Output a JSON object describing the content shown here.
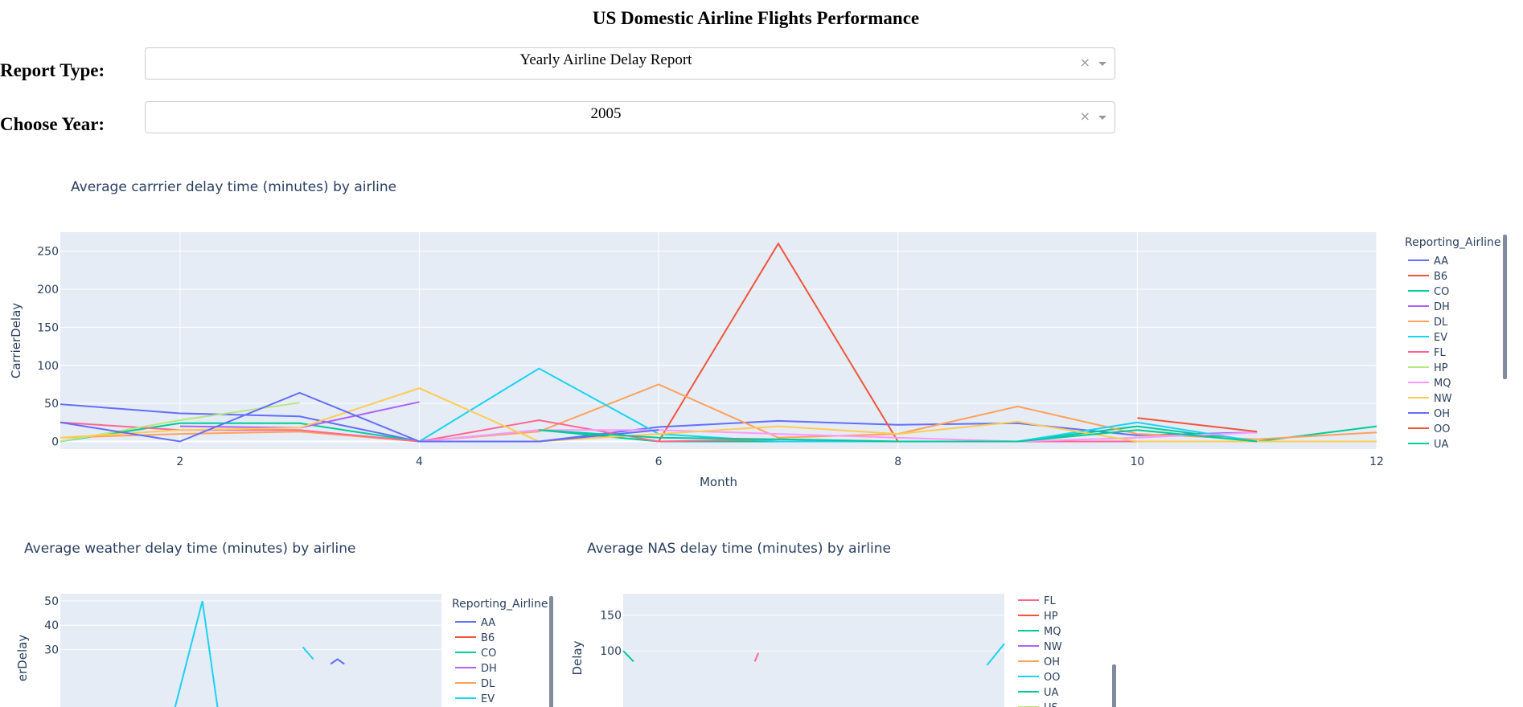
{
  "page": {
    "title": "US Domestic Airline Flights Performance"
  },
  "controls": {
    "report_type": {
      "label": "Report Type:",
      "value": "Yearly Airline Delay Report",
      "clear_glyph": "×"
    },
    "year": {
      "label": "Choose Year:",
      "value": "2005",
      "clear_glyph": "×"
    }
  },
  "chart_data": [
    {
      "type": "line",
      "title": "Average carrrier delay time (minutes) by airline",
      "xlabel": "Month",
      "ylabel": "CarrierDelay",
      "xlim": [
        1,
        12
      ],
      "ylim": [
        -10,
        275
      ],
      "xticks": [
        2,
        4,
        6,
        8,
        10,
        12
      ],
      "yticks": [
        0,
        50,
        100,
        150,
        200,
        250
      ],
      "grid": true,
      "legend": {
        "title": "Reporting_Airline",
        "position": "right",
        "entries": [
          "AA",
          "B6",
          "CO",
          "DH",
          "DL",
          "EV",
          "FL",
          "HP",
          "MQ",
          "NW",
          "OH",
          "OO",
          "UA"
        ]
      },
      "series": [
        {
          "name": "AA",
          "color": "#636efa",
          "x": [
            1,
            2,
            3,
            4,
            5,
            6,
            7,
            8,
            9,
            10,
            11
          ],
          "y": [
            49,
            37,
            33,
            0,
            0,
            19,
            27,
            22,
            24,
            8,
            12
          ]
        },
        {
          "name": "B6",
          "color": "#EF553B",
          "x": [
            6,
            7,
            8
          ],
          "y": [
            0,
            260,
            0
          ]
        },
        {
          "name": "CO",
          "color": "#00cc96",
          "x": [
            1,
            2,
            3,
            4,
            5,
            6,
            7,
            8,
            9,
            10,
            11,
            12
          ],
          "y": [
            0,
            24,
            24,
            0,
            15,
            0,
            0,
            0,
            0,
            20,
            0,
            20
          ]
        },
        {
          "name": "DH",
          "color": "#ab63fa",
          "x": [
            2,
            3,
            4
          ],
          "y": [
            20,
            18,
            52
          ]
        },
        {
          "name": "DL",
          "color": "#FFA15A",
          "x": [
            1,
            2,
            3,
            4,
            5,
            6,
            7,
            8,
            9,
            10,
            11,
            12
          ],
          "y": [
            5,
            10,
            13,
            0,
            13,
            75,
            5,
            10,
            46,
            10,
            3,
            12
          ]
        },
        {
          "name": "EV",
          "color": "#19d3f3",
          "x": [
            4,
            5,
            6,
            7,
            8,
            9,
            10,
            11,
            12
          ],
          "y": [
            0,
            96,
            10,
            0,
            0,
            0,
            25,
            0,
            0
          ]
        },
        {
          "name": "FL",
          "color": "#FF6692",
          "x": [
            1,
            2,
            3,
            4,
            5,
            6,
            7,
            8,
            9,
            10,
            11,
            12
          ],
          "y": [
            25,
            15,
            15,
            0,
            28,
            0,
            3,
            0,
            0,
            0,
            0,
            0
          ]
        },
        {
          "name": "HP",
          "color": "#B6E880",
          "x": [
            1,
            2,
            3
          ],
          "y": [
            0,
            28,
            51
          ]
        },
        {
          "name": "MQ",
          "color": "#FF97FF",
          "x": [
            4,
            5,
            6,
            7,
            8,
            9,
            10,
            11
          ],
          "y": [
            0,
            15,
            15,
            10,
            5,
            0,
            5,
            12
          ]
        },
        {
          "name": "NW",
          "color": "#FECB52",
          "x": [
            1,
            2,
            3,
            4,
            5,
            6,
            7,
            8,
            9,
            10,
            11,
            12
          ],
          "y": [
            5,
            15,
            18,
            70,
            0,
            10,
            20,
            10,
            26,
            0,
            0,
            0
          ]
        },
        {
          "name": "OH",
          "color": "#636efa",
          "x": [
            1,
            2,
            3,
            4,
            5,
            6
          ],
          "y": [
            25,
            0,
            64,
            0,
            0,
            15
          ]
        },
        {
          "name": "OO",
          "color": "#EF553B",
          "x": [
            10,
            11
          ],
          "y": [
            31,
            13
          ]
        },
        {
          "name": "UA",
          "color": "#00cc96",
          "x": [
            5,
            6,
            7,
            8,
            9,
            10,
            11
          ],
          "y": [
            15,
            5,
            3,
            0,
            0,
            15,
            0
          ]
        }
      ]
    },
    {
      "type": "line",
      "title": "Average weather delay time (minutes) by airline",
      "xlabel": "",
      "ylabel": "erDelay",
      "xlim": [
        1,
        12
      ],
      "ylim": [
        0,
        53
      ],
      "xticks": [],
      "yticks": [
        30,
        40,
        50
      ],
      "grid": true,
      "legend": {
        "title": "Reporting_Airline",
        "position": "right",
        "entries": [
          "AA",
          "B6",
          "CO",
          "DH",
          "DL",
          "EV"
        ]
      },
      "series": [
        {
          "name": "EV",
          "color": "#19d3f3",
          "x": [
            4.2,
            5.1,
            5.6
          ],
          "y": [
            0,
            50,
            0
          ]
        },
        {
          "name": "EV",
          "color": "#19d3f3",
          "x": [
            8,
            8.3
          ],
          "y": [
            31,
            26
          ]
        },
        {
          "name": "AA",
          "color": "#636efa",
          "x": [
            8.8,
            9,
            9.2
          ],
          "y": [
            24,
            26,
            24
          ]
        }
      ]
    },
    {
      "type": "line",
      "title": "Average NAS delay time (minutes) by airline",
      "xlabel": "",
      "ylabel": "Delay",
      "xlim": [
        1,
        12
      ],
      "ylim": [
        0,
        180
      ],
      "xticks": [],
      "yticks": [
        100,
        150
      ],
      "grid": true,
      "legend": {
        "title": "",
        "position": "right",
        "entries": [
          "FL",
          "HP",
          "MQ",
          "NW",
          "OH",
          "OO",
          "UA",
          "US"
        ]
      },
      "series": [
        {
          "name": "UA",
          "color": "#00cc96",
          "x": [
            1,
            1.3
          ],
          "y": [
            100,
            85
          ]
        },
        {
          "name": "FL",
          "color": "#FF6692",
          "x": [
            4.8,
            4.9
          ],
          "y": [
            85,
            97
          ]
        },
        {
          "name": "EV",
          "color": "#19d3f3",
          "x": [
            11.5,
            12
          ],
          "y": [
            80,
            110
          ]
        }
      ]
    }
  ]
}
